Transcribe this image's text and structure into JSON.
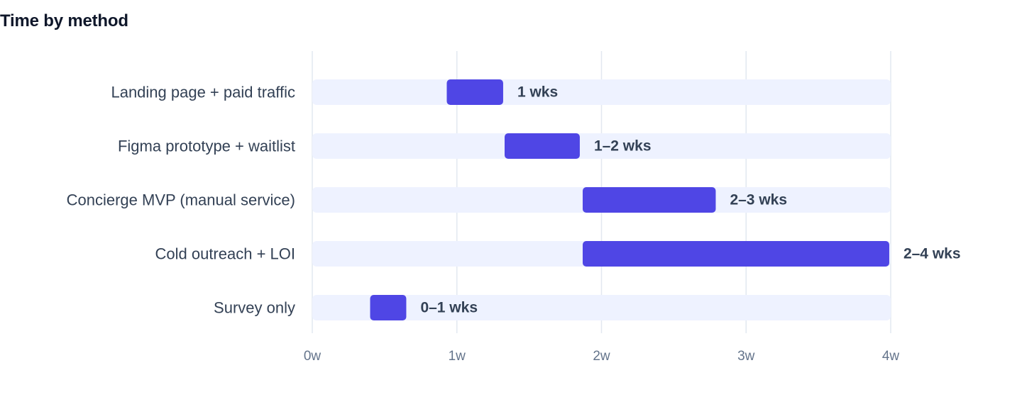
{
  "chart_data": {
    "type": "bar",
    "orientation": "horizontal",
    "title": "Time by method",
    "xlabel": "",
    "ylabel": "",
    "xlim": [
      0,
      4
    ],
    "x_ticks": [
      0,
      1,
      2,
      3,
      4
    ],
    "x_tick_labels": [
      "0w",
      "1w",
      "2w",
      "3w",
      "4w"
    ],
    "grid": true,
    "legend": null,
    "categories": [
      "Landing page + paid traffic",
      "Figma prototype + waitlist",
      "Concierge MVP (manual service)",
      "Cold outreach + LOI",
      "Survey only"
    ],
    "ranges": [
      {
        "start": 0.93,
        "end": 1.32
      },
      {
        "start": 1.33,
        "end": 1.85
      },
      {
        "start": 1.87,
        "end": 2.79
      },
      {
        "start": 1.87,
        "end": 3.99
      },
      {
        "start": 0.4,
        "end": 0.65
      }
    ],
    "value_labels": [
      "1 wks",
      "1–2 wks",
      "2–3 wks",
      "2–4 wks",
      "0–1 wks"
    ],
    "colors": {
      "bar": "#4f46e5",
      "track": "#eef2ff",
      "grid": "#e2e8f0"
    }
  }
}
